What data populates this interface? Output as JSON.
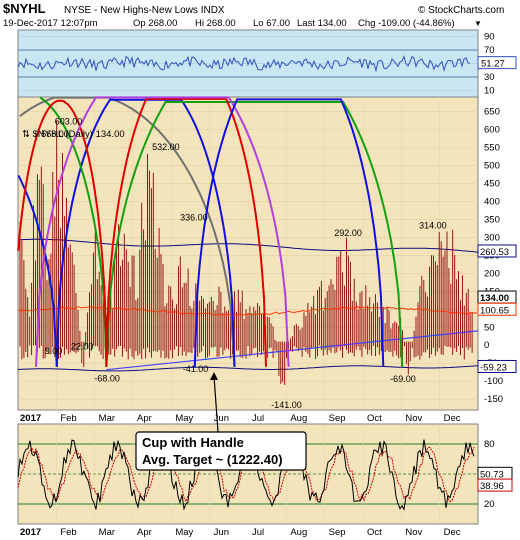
{
  "header": {
    "title": "$NYHL",
    "subtitle": "NYSE - New Highs-New Lows INDX",
    "watermark": "© StockCharts.com",
    "date": "19-Dec-2017 12:07pm",
    "open": "Op 268.00",
    "high": "Hi 268.00",
    "low": "Lo 67.00",
    "last": "Last 134.00",
    "change": "Chg -109.00 (-44.86%)",
    "change_arrow": "▼"
  },
  "colors": {
    "rsi_bg": "#c9e7f2",
    "main_bg": "#f4e4bc",
    "bottom_bg": "#f4e4bc",
    "bars": "#8b0000",
    "ma": "#ff3300",
    "envelope": "#0a0a80",
    "trendline": "#4040ff",
    "cycle_black": "#707070",
    "cycle_blue": "#1010e0",
    "cycle_red": "#e00000",
    "cycle_green": "#10a010",
    "cycle_violet": "#b040e0",
    "rsi_line": "#3050c0"
  },
  "chart_data": [
    {
      "type": "line",
      "panel": "rsi",
      "y_ticks": [
        "90",
        "70",
        "50",
        "30",
        "10"
      ],
      "ylim": [
        0,
        100
      ],
      "last_label": "51.27",
      "levels": [
        70,
        30
      ]
    },
    {
      "type": "bar",
      "panel": "main",
      "legend": "⇅ $NYHL (Daily) 134.00",
      "y_ticks": [
        "650",
        "600",
        "550",
        "500",
        "450",
        "400",
        "350",
        "300",
        "250",
        "200",
        "150",
        "100",
        "50",
        "0",
        "-50",
        "-100",
        "-150"
      ],
      "ylim": [
        -180,
        690
      ],
      "x_year": "2017",
      "x_months": [
        "Feb",
        "Mar",
        "Apr",
        "May",
        "Jun",
        "Jul",
        "Aug",
        "Sep",
        "Oct",
        "Nov",
        "Dec"
      ],
      "right_labels": [
        "260.53",
        "134.00",
        "100.65",
        "-59.23"
      ],
      "annotations": [
        {
          "text": "568.00",
          "x": 3.9,
          "y": 568
        },
        {
          "text": "603.00",
          "x": 5.4,
          "y": 603
        },
        {
          "text": "532.00",
          "x": 16.2,
          "y": 532
        },
        {
          "text": "336.00",
          "x": 19.3,
          "y": 336
        },
        {
          "text": "292.00",
          "x": 36.4,
          "y": 292
        },
        {
          "text": "314.00",
          "x": 45.8,
          "y": 314
        },
        {
          "text": "9.00",
          "x": 4.3,
          "y": 9
        },
        {
          "text": "22.00",
          "x": 7.2,
          "y": 22
        },
        {
          "text": "-68.00",
          "x": 9.8,
          "y": -68
        },
        {
          "text": "-41.00",
          "x": 19.6,
          "y": -41
        },
        {
          "text": "-141.00",
          "x": 29.4,
          "y": -141
        },
        {
          "text": "-69.00",
          "x": 42.6,
          "y": -69
        }
      ],
      "series": [
        {
          "name": "$NYHL",
          "approx_values": [
            380,
            90,
            560,
            240,
            620,
            410,
            200,
            -68,
            320,
            160,
            140,
            300,
            220,
            200,
            550,
            336,
            180,
            120,
            240,
            130,
            190,
            110,
            150,
            90,
            140,
            120,
            100,
            80,
            60,
            -141,
            40,
            70,
            110,
            150,
            170,
            230,
            292,
            190,
            150,
            130,
            110,
            80,
            90,
            -69,
            120,
            200,
            280,
            310,
            260,
            170,
            134
          ]
        }
      ]
    },
    {
      "type": "line",
      "panel": "lower",
      "y_ticks": [
        "80",
        "50",
        "20"
      ],
      "ylim": [
        0,
        100
      ],
      "last_labels": [
        "50.73",
        "38.96"
      ],
      "x_year": "2017",
      "x_months": [
        "Feb",
        "Mar",
        "Apr",
        "May",
        "Jun",
        "Jul",
        "Aug",
        "Sep",
        "Oct",
        "Nov",
        "Dec"
      ],
      "callout": [
        "Cup with Handle",
        "Avg. Target ~ (1222.40)"
      ]
    }
  ]
}
